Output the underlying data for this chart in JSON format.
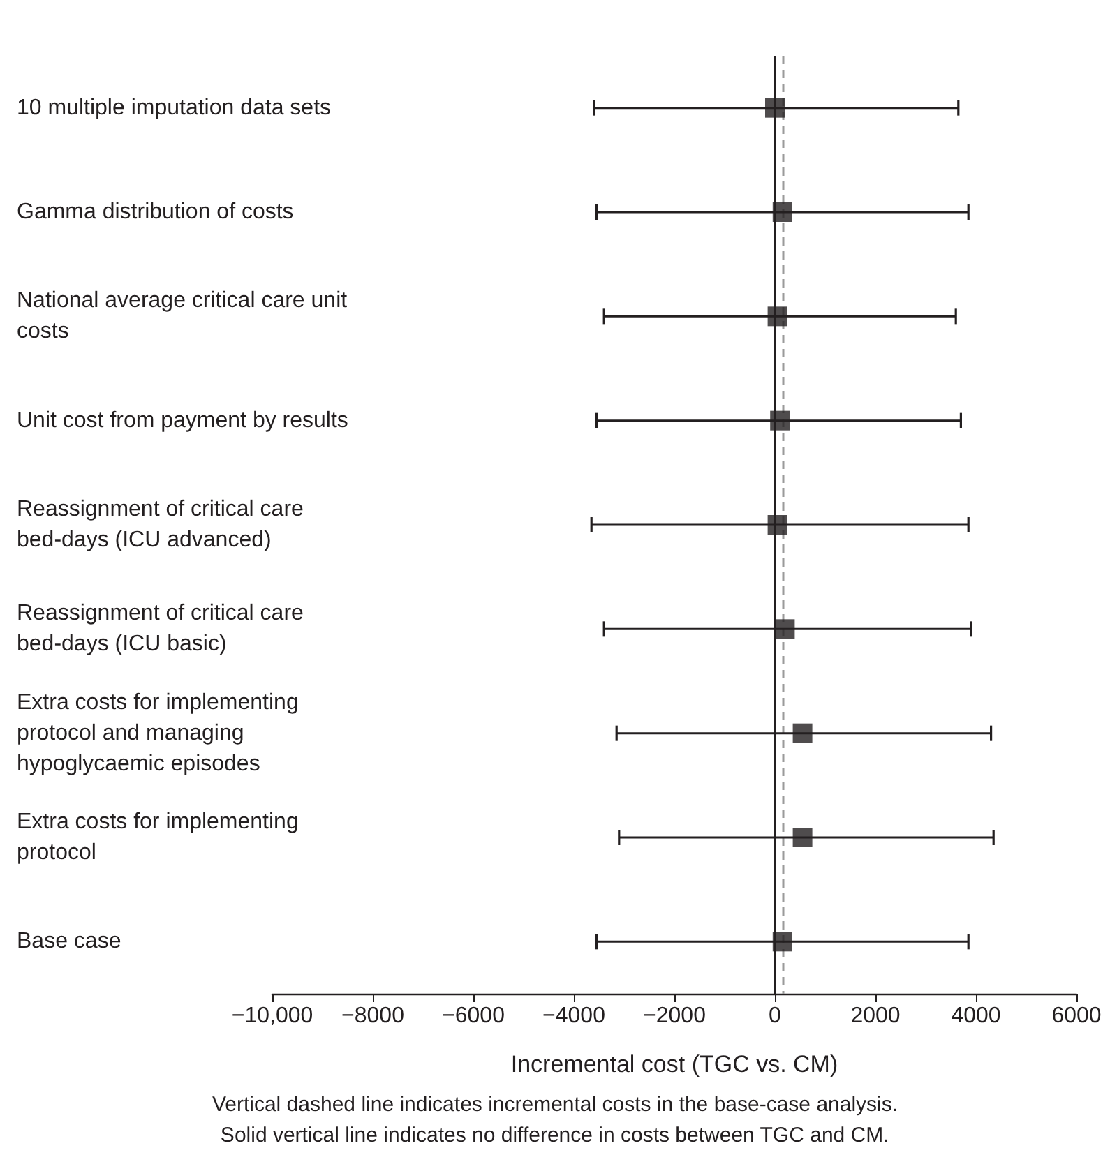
{
  "chart_data": {
    "type": "scatter",
    "orientation": "horizontal",
    "categories": [
      "10 multiple imputation data sets",
      "Gamma distribution of costs",
      "National average critical care unit costs",
      "Unit cost from payment by results",
      "Reassignment of critical care bed-days (ICU advanced)",
      "Reassignment of critical care bed-days (ICU basic)",
      "Extra costs for implementing protocol and managing hypoglycaemic episodes",
      "Extra costs for implementing protocol",
      "Base case"
    ],
    "values": [
      0,
      150,
      50,
      100,
      50,
      200,
      550,
      550,
      150
    ],
    "errors": [
      [
        -3600,
        3650
      ],
      [
        -3550,
        3850
      ],
      [
        -3400,
        3600
      ],
      [
        -3550,
        3700
      ],
      [
        -3650,
        3850
      ],
      [
        -3400,
        3900
      ],
      [
        -3150,
        4300
      ],
      [
        -3100,
        4350
      ],
      [
        -3550,
        3850
      ]
    ],
    "color": "#231f20",
    "marker": "square",
    "xlim": [
      -10000,
      6000
    ],
    "xticks": [
      {
        "value": -10000,
        "label": "−10,000"
      },
      {
        "value": -8000,
        "label": "−8000"
      },
      {
        "value": -6000,
        "label": "−6000"
      },
      {
        "value": -4000,
        "label": "−4000"
      },
      {
        "value": -2000,
        "label": "−2000"
      },
      0,
      2000,
      4000,
      6000
    ],
    "xlabel": "Incremental cost (TGC vs. CM)",
    "ref_lines": [
      {
        "axis": "x",
        "value": 0,
        "color": "#231f20",
        "line_style": "solid"
      },
      {
        "axis": "x",
        "value": 150,
        "color": "#9a9a9a",
        "line_style": "dashed"
      }
    ],
    "grid": false,
    "annotations": [
      "Vertical dashed line indicates incremental costs in the base-case analysis.",
      "Solid vertical line indicates no difference in costs between TGC and CM."
    ]
  }
}
